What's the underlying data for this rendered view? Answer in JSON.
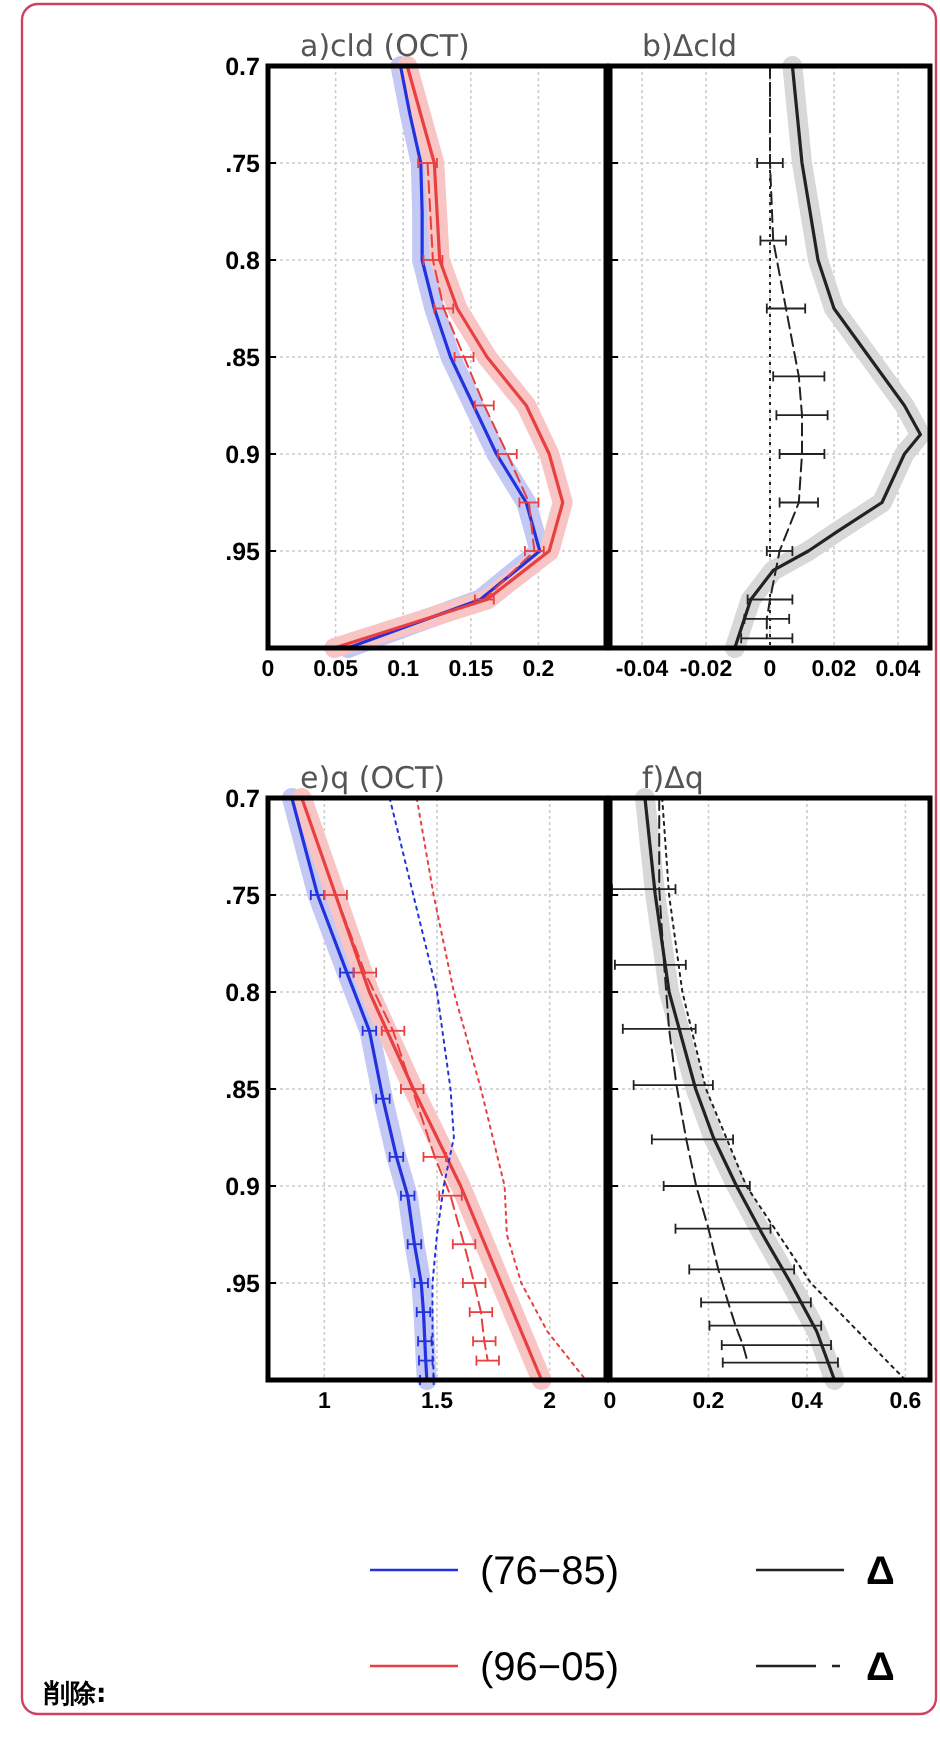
{
  "chart_data": [
    {
      "type": "line",
      "title": "a)cld (OCT)",
      "xlim": [
        0,
        0.25
      ],
      "xticks": [
        0,
        0.05,
        0.1,
        0.15,
        0.2
      ],
      "ylim": [
        1.0,
        0.7
      ],
      "yticks": [
        0.7,
        {
          "value": 0.75,
          "label": ".75"
        },
        0.8,
        {
          "value": 0.85,
          "label": ".85"
        },
        0.9,
        {
          "value": 0.95,
          "label": ".95"
        }
      ],
      "grid": true,
      "legend": "bottom",
      "annotations": [
        "削除:"
      ],
      "series": [
        {
          "color": "#c4c8f4",
          "line_style": "solid",
          "x": [
            0.098,
            0.105,
            0.113,
            0.114,
            0.114,
            0.123,
            0.135,
            0.152,
            0.169,
            0.191,
            0.201,
            0.157,
            0.059
          ],
          "values": [
            0.7,
            0.725,
            0.75,
            0.775,
            0.8,
            0.825,
            0.85,
            0.875,
            0.9,
            0.925,
            0.95,
            0.975,
            1.0
          ]
        },
        {
          "color": "#f8c4c4",
          "line_style": "solid",
          "x": [
            0.103,
            0.113,
            0.123,
            0.125,
            0.127,
            0.14,
            0.162,
            0.191,
            0.208,
            0.218,
            0.208,
            0.162,
            0.049
          ],
          "values": [
            0.7,
            0.725,
            0.75,
            0.775,
            0.8,
            0.825,
            0.85,
            0.875,
            0.9,
            0.925,
            0.95,
            0.975,
            1.0
          ]
        },
        {
          "name": "(76−85)",
          "color": "#2233dd",
          "line_style": "solid",
          "x": [
            0.098,
            0.105,
            0.113,
            0.114,
            0.114,
            0.123,
            0.135,
            0.152,
            0.169,
            0.191,
            0.201,
            0.157,
            0.059
          ],
          "values": [
            0.7,
            0.725,
            0.75,
            0.775,
            0.8,
            0.825,
            0.85,
            0.875,
            0.9,
            0.925,
            0.95,
            0.975,
            1.0
          ]
        },
        {
          "name": "(96−05)",
          "color": "#e84040",
          "line_style": "solid",
          "x": [
            0.103,
            0.113,
            0.123,
            0.125,
            0.127,
            0.14,
            0.162,
            0.191,
            0.208,
            0.218,
            0.208,
            0.162,
            0.049
          ],
          "values": [
            0.7,
            0.725,
            0.75,
            0.775,
            0.8,
            0.825,
            0.85,
            0.875,
            0.9,
            0.925,
            0.95,
            0.975,
            1.0
          ]
        },
        {
          "color": "#e84040",
          "line_style": "dashed",
          "x": [
            0.118,
            0.122,
            0.13,
            0.145,
            0.16,
            0.177,
            0.193,
            0.197,
            0.16
          ],
          "values": [
            0.75,
            0.8,
            0.825,
            0.85,
            0.875,
            0.9,
            0.925,
            0.95,
            0.975
          ],
          "xerrors": [
            0.007,
            0.007,
            0.007,
            0.007,
            0.007,
            0.007,
            0.007,
            0.007,
            0.007
          ]
        }
      ]
    },
    {
      "type": "line",
      "title": "b)Δcld",
      "xlim": [
        -0.05,
        0.05
      ],
      "xticks": [
        -0.04,
        -0.02,
        0,
        0.02,
        0.04
      ],
      "ylim": [
        1.0,
        0.7
      ],
      "yticks": [
        {
          "value": 0.7,
          "label": null
        },
        {
          "value": 0.75,
          "label": null
        },
        {
          "value": 0.8,
          "label": null
        },
        {
          "value": 0.85,
          "label": null
        },
        {
          "value": 0.9,
          "label": null
        },
        {
          "value": 0.95,
          "label": null
        }
      ],
      "tick_labels": "x",
      "grid": true,
      "legend": "bottom",
      "ref_lines": [
        {
          "axis": "x",
          "value": 0,
          "color": "#222222",
          "line_style": "dotted"
        }
      ],
      "series": [
        {
          "color": "#d8d8d8",
          "line_style": "solid",
          "x": [
            0.007,
            0.01,
            0.015,
            0.02,
            0.031,
            0.042,
            0.047,
            0.042,
            0.035,
            0.021,
            0.012,
            0.001,
            -0.006,
            -0.009,
            -0.011
          ],
          "values": [
            0.7,
            0.75,
            0.8,
            0.825,
            0.85,
            0.875,
            0.89,
            0.9,
            0.925,
            0.94,
            0.95,
            0.96,
            0.975,
            0.99,
            1.0
          ]
        },
        {
          "name": "Δ",
          "color": "#222222",
          "line_style": "solid",
          "x": [
            0.007,
            0.01,
            0.015,
            0.02,
            0.031,
            0.042,
            0.047,
            0.042,
            0.035,
            0.021,
            0.012,
            0.001,
            -0.006,
            -0.009,
            -0.011
          ],
          "values": [
            0.7,
            0.75,
            0.8,
            0.825,
            0.85,
            0.875,
            0.89,
            0.9,
            0.925,
            0.94,
            0.95,
            0.96,
            0.975,
            0.99,
            1.0
          ]
        },
        {
          "name": "Δ",
          "color": "#222222",
          "line_style": "dashed",
          "x": [
            0,
            0,
            0.001,
            0.005,
            0.009,
            0.01,
            0.01,
            0.009,
            0.003,
            0,
            -0.001,
            -0.001
          ],
          "values": [
            0.7,
            0.75,
            0.79,
            0.825,
            0.86,
            0.88,
            0.9,
            0.925,
            0.95,
            0.975,
            0.985,
            0.995
          ],
          "xerrors": [
            null,
            0.004,
            0.004,
            0.006,
            0.008,
            0.008,
            0.007,
            0.006,
            0.004,
            0.007,
            0.007,
            0.008
          ]
        }
      ]
    },
    {
      "type": "line",
      "title": "e)q (OCT)",
      "xlim": [
        0.75,
        2.25
      ],
      "xticks": [
        1,
        1.5,
        2
      ],
      "ylim": [
        1.0,
        0.7
      ],
      "yticks": [
        0.7,
        {
          "value": 0.75,
          "label": ".75"
        },
        0.8,
        {
          "value": 0.85,
          "label": ".85"
        },
        0.9,
        {
          "value": 0.95,
          "label": ".95"
        }
      ],
      "grid": true,
      "series": [
        {
          "color": "#c4c8f4",
          "line_style": "solid",
          "x": [
            0.856,
            0.97,
            1.1,
            1.2,
            1.26,
            1.32,
            1.37,
            1.4,
            1.43,
            1.44,
            1.446,
            1.45,
            1.455
          ],
          "values": [
            0.7,
            0.75,
            0.79,
            0.82,
            0.855,
            0.885,
            0.905,
            0.93,
            0.95,
            0.965,
            0.98,
            0.99,
            1.0
          ]
        },
        {
          "color": "#f8c4c4",
          "line_style": "solid",
          "x": [
            0.9,
            1.05,
            1.2,
            1.395,
            1.605,
            1.784,
            1.964
          ],
          "values": [
            0.7,
            0.75,
            0.8,
            0.85,
            0.9,
            0.95,
            1.0
          ]
        },
        {
          "color": "#2233dd",
          "line_style": "solid",
          "x": [
            0.856,
            0.97,
            1.1,
            1.2,
            1.26,
            1.32,
            1.37,
            1.4,
            1.43,
            1.44,
            1.446,
            1.45,
            1.455
          ],
          "values": [
            0.7,
            0.75,
            0.79,
            0.82,
            0.855,
            0.885,
            0.905,
            0.93,
            0.95,
            0.965,
            0.98,
            0.99,
            1.0
          ],
          "xerrors": [
            null,
            0.03,
            0.03,
            0.03,
            0.03,
            0.03,
            0.03,
            0.03,
            0.03,
            0.03,
            0.03,
            0.03,
            0.03
          ]
        },
        {
          "color": "#e84040",
          "line_style": "solid",
          "x": [
            0.9,
            1.05,
            1.2,
            1.395,
            1.605,
            1.784,
            1.964
          ],
          "values": [
            0.7,
            0.75,
            0.8,
            0.85,
            0.9,
            0.95,
            1.0
          ]
        },
        {
          "color": "#e84040",
          "line_style": "dashed",
          "x": [
            1.05,
            1.18,
            1.305,
            1.39,
            1.49,
            1.56,
            1.62,
            1.665,
            1.695,
            1.71,
            1.725
          ],
          "values": [
            0.75,
            0.79,
            0.82,
            0.85,
            0.885,
            0.905,
            0.93,
            0.95,
            0.965,
            0.98,
            0.99
          ],
          "xerrors": [
            0.05,
            0.05,
            0.05,
            0.05,
            0.05,
            0.05,
            0.05,
            0.05,
            0.05,
            0.05,
            0.05
          ]
        },
        {
          "color": "#2233dd",
          "line_style": "dotted",
          "x": [
            1.29,
            1.395,
            1.5,
            1.56,
            1.575,
            1.53,
            1.5,
            1.48,
            1.48,
            1.485
          ],
          "values": [
            0.7,
            0.75,
            0.8,
            0.85,
            0.875,
            0.9,
            0.925,
            0.95,
            0.975,
            1.0
          ]
        },
        {
          "color": "#e84040",
          "line_style": "dotted",
          "x": [
            1.41,
            1.485,
            1.575,
            1.695,
            1.8,
            1.81,
            1.874,
            1.99,
            2.16
          ],
          "values": [
            0.7,
            0.75,
            0.8,
            0.85,
            0.9,
            0.925,
            0.95,
            0.975,
            1.0
          ]
        }
      ]
    },
    {
      "type": "line",
      "title": "f)Δq",
      "xlim": [
        0,
        0.65
      ],
      "xticks": [
        0,
        0.2,
        0.4,
        0.6
      ],
      "ylim": [
        1.0,
        0.7
      ],
      "yticks": [
        {
          "value": 0.7,
          "label": null
        },
        {
          "value": 0.75,
          "label": null
        },
        {
          "value": 0.8,
          "label": null
        },
        {
          "value": 0.85,
          "label": null
        },
        {
          "value": 0.9,
          "label": null
        },
        {
          "value": 0.95,
          "label": null
        }
      ],
      "tick_labels": "x",
      "grid": true,
      "series": [
        {
          "color": "#d8d8d8",
          "line_style": "solid",
          "x": [
            0.071,
            0.092,
            0.12,
            0.174,
            0.21,
            0.257,
            0.31,
            0.367,
            0.42,
            0.456
          ],
          "values": [
            0.7,
            0.75,
            0.8,
            0.85,
            0.875,
            0.9,
            0.925,
            0.95,
            0.975,
            1.0
          ]
        },
        {
          "color": "#222222",
          "line_style": "solid",
          "x": [
            0.071,
            0.092,
            0.12,
            0.174,
            0.21,
            0.257,
            0.31,
            0.367,
            0.42,
            0.456
          ],
          "values": [
            0.7,
            0.75,
            0.8,
            0.85,
            0.875,
            0.9,
            0.925,
            0.95,
            0.975,
            1.0
          ]
        },
        {
          "color": "#222222",
          "line_style": "dashed",
          "x": [
            0.1,
            0.1,
            0.11,
            0.12,
            0.135,
            0.155,
            0.175,
            0.2,
            0.22,
            0.24,
            0.255,
            0.27,
            0.28
          ],
          "values": [
            0.7,
            0.747,
            0.786,
            0.819,
            0.848,
            0.876,
            0.9,
            0.922,
            0.943,
            0.96,
            0.972,
            0.982,
            0.991
          ],
          "xerrors": [
            null,
            [
              0.004,
              0.133
            ],
            [
              0.01,
              0.154
            ],
            [
              0.026,
              0.174
            ],
            [
              0.048,
              0.209
            ],
            [
              0.085,
              0.25
            ],
            [
              0.109,
              0.284
            ],
            [
              0.133,
              0.326
            ],
            [
              0.161,
              0.374
            ],
            [
              0.185,
              0.408
            ],
            [
              0.202,
              0.429
            ],
            [
              0.227,
              0.449
            ],
            [
              0.229,
              0.463
            ]
          ]
        },
        {
          "color": "#222222",
          "line_style": "dotted",
          "x": [
            0.106,
            0.12,
            0.147,
            0.195,
            0.277,
            0.408,
            0.504,
            0.6
          ],
          "values": [
            0.7,
            0.75,
            0.8,
            0.85,
            0.9,
            0.95,
            0.975,
            1.0
          ]
        }
      ]
    }
  ]
}
